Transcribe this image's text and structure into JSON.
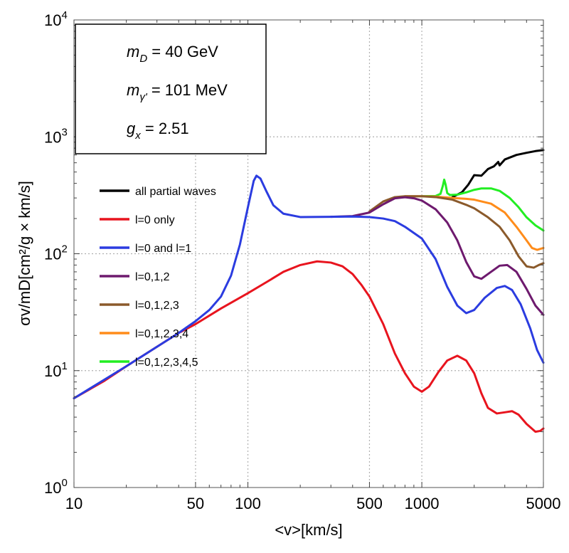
{
  "chart_data": {
    "type": "line",
    "title": "",
    "xlabel": "<v>[km/s]",
    "ylabel": "σv/mD[cm²/g × km/s]",
    "xscale": "log",
    "yscale": "log",
    "xlim": [
      10,
      5000
    ],
    "ylim": [
      1,
      10000
    ],
    "grid": "dotted gray at 50, 100, 500, 1000 and 1000, 100, 10",
    "x_ticks": [
      {
        "value": 10,
        "label": "10"
      },
      {
        "value": 50,
        "label": "50"
      },
      {
        "value": 100,
        "label": "100"
      },
      {
        "value": 500,
        "label": "500"
      },
      {
        "value": 1000,
        "label": "1000"
      },
      {
        "value": 5000,
        "label": "5000"
      }
    ],
    "y_ticks": [
      {
        "value": 1,
        "base": "10",
        "exp": "0"
      },
      {
        "value": 10,
        "base": "10",
        "exp": "1"
      },
      {
        "value": 100,
        "base": "10",
        "exp": "2"
      },
      {
        "value": 1000,
        "base": "10",
        "exp": "3"
      },
      {
        "value": 10000,
        "base": "10",
        "exp": "4"
      }
    ],
    "legend_position": "upper-left, inside plot",
    "info_box": {
      "position": "top-left",
      "lines": [
        {
          "symbol": "m",
          "sub": "D",
          "rest": " = 40 GeV"
        },
        {
          "symbol": "m",
          "sub": "γ'",
          "rest": " = 101 MeV"
        },
        {
          "symbol": "g",
          "sub": "x",
          "rest": " = 2.51"
        }
      ]
    },
    "series": [
      {
        "name": "all partial waves",
        "color": "#000000",
        "points": [
          [
            1500,
            305
          ],
          [
            1700,
            335
          ],
          [
            1850,
            390
          ],
          [
            2000,
            470
          ],
          [
            2200,
            465
          ],
          [
            2400,
            530
          ],
          [
            2600,
            560
          ],
          [
            2750,
            610
          ],
          [
            2800,
            570
          ],
          [
            3000,
            640
          ],
          [
            3500,
            700
          ],
          [
            4000,
            730
          ],
          [
            4500,
            755
          ],
          [
            5000,
            770
          ]
        ]
      },
      {
        "name": "l=0 only",
        "color": "#e8141e",
        "points": [
          [
            10,
            5.8
          ],
          [
            15,
            8.2
          ],
          [
            20,
            10.9
          ],
          [
            30,
            16
          ],
          [
            40,
            21
          ],
          [
            50,
            25
          ],
          [
            70,
            34
          ],
          [
            100,
            46
          ],
          [
            130,
            58
          ],
          [
            160,
            70
          ],
          [
            200,
            80
          ],
          [
            250,
            86
          ],
          [
            300,
            84
          ],
          [
            350,
            78
          ],
          [
            400,
            67
          ],
          [
            450,
            54
          ],
          [
            500,
            43
          ],
          [
            600,
            25
          ],
          [
            700,
            14
          ],
          [
            800,
            9.5
          ],
          [
            900,
            7.3
          ],
          [
            1000,
            6.6
          ],
          [
            1100,
            7.3
          ],
          [
            1250,
            9.8
          ],
          [
            1400,
            12.2
          ],
          [
            1600,
            13.4
          ],
          [
            1800,
            12.2
          ],
          [
            2000,
            9.5
          ],
          [
            2200,
            6.4
          ],
          [
            2400,
            4.8
          ],
          [
            2700,
            4.3
          ],
          [
            3000,
            4.4
          ],
          [
            3300,
            4.5
          ],
          [
            3600,
            4.2
          ],
          [
            4000,
            3.5
          ],
          [
            4500,
            3.0
          ],
          [
            4800,
            3.05
          ],
          [
            5000,
            3.2
          ]
        ]
      },
      {
        "name": "l=0 and l=1",
        "color": "#2b3ce0",
        "points": [
          [
            10,
            5.8
          ],
          [
            20,
            10.9
          ],
          [
            30,
            16
          ],
          [
            40,
            21
          ],
          [
            50,
            26.5
          ],
          [
            60,
            33
          ],
          [
            70,
            43
          ],
          [
            80,
            65
          ],
          [
            90,
            120
          ],
          [
            100,
            250
          ],
          [
            108,
            420
          ],
          [
            112,
            465
          ],
          [
            118,
            440
          ],
          [
            128,
            340
          ],
          [
            140,
            260
          ],
          [
            160,
            220
          ],
          [
            200,
            206
          ],
          [
            300,
            207
          ],
          [
            400,
            208
          ],
          [
            500,
            206
          ],
          [
            600,
            200
          ],
          [
            700,
            190
          ],
          [
            800,
            170
          ],
          [
            1000,
            135
          ],
          [
            1200,
            90
          ],
          [
            1400,
            52
          ],
          [
            1600,
            36
          ],
          [
            1800,
            31
          ],
          [
            2000,
            33
          ],
          [
            2300,
            42
          ],
          [
            2700,
            51
          ],
          [
            3000,
            53
          ],
          [
            3300,
            49
          ],
          [
            3700,
            37
          ],
          [
            4200,
            23
          ],
          [
            4600,
            15
          ],
          [
            5000,
            11.7
          ]
        ]
      },
      {
        "name": "l=0,1,2",
        "color": "#6e1a6e",
        "points": [
          [
            300,
            207
          ],
          [
            400,
            210
          ],
          [
            500,
            225
          ],
          [
            600,
            265
          ],
          [
            700,
            298
          ],
          [
            800,
            304
          ],
          [
            900,
            298
          ],
          [
            1000,
            285
          ],
          [
            1200,
            240
          ],
          [
            1400,
            185
          ],
          [
            1600,
            130
          ],
          [
            1800,
            85
          ],
          [
            2000,
            64
          ],
          [
            2200,
            61
          ],
          [
            2500,
            70
          ],
          [
            2800,
            79
          ],
          [
            3100,
            80
          ],
          [
            3500,
            70
          ],
          [
            4000,
            50
          ],
          [
            4500,
            36
          ],
          [
            5000,
            30
          ]
        ]
      },
      {
        "name": "l=0,1,2,3",
        "color": "#8b5a2b",
        "points": [
          [
            500,
            230
          ],
          [
            600,
            280
          ],
          [
            700,
            305
          ],
          [
            800,
            310
          ],
          [
            1000,
            310
          ],
          [
            1200,
            305
          ],
          [
            1500,
            290
          ],
          [
            1800,
            262
          ],
          [
            2000,
            245
          ],
          [
            2400,
            205
          ],
          [
            2800,
            170
          ],
          [
            3200,
            130
          ],
          [
            3600,
            95
          ],
          [
            4000,
            78
          ],
          [
            4400,
            76
          ],
          [
            4700,
            80
          ],
          [
            5000,
            83
          ]
        ]
      },
      {
        "name": "l=0,1,2,3,4",
        "color": "#ff8c1a",
        "points": [
          [
            800,
            310
          ],
          [
            1000,
            310
          ],
          [
            1200,
            308
          ],
          [
            1500,
            300
          ],
          [
            1800,
            295
          ],
          [
            2000,
            290
          ],
          [
            2500,
            268
          ],
          [
            3000,
            225
          ],
          [
            3500,
            170
          ],
          [
            4000,
            130
          ],
          [
            4300,
            112
          ],
          [
            4600,
            108
          ],
          [
            5000,
            112
          ]
        ]
      },
      {
        "name": "l=0,1,2,3,4,5",
        "color": "#22ee22",
        "points": [
          [
            1000,
            310
          ],
          [
            1200,
            312
          ],
          [
            1280,
            325
          ],
          [
            1320,
            380
          ],
          [
            1345,
            430
          ],
          [
            1370,
            390
          ],
          [
            1400,
            330
          ],
          [
            1450,
            318
          ],
          [
            1600,
            320
          ],
          [
            1800,
            335
          ],
          [
            2000,
            352
          ],
          [
            2200,
            362
          ],
          [
            2500,
            362
          ],
          [
            2800,
            345
          ],
          [
            3200,
            300
          ],
          [
            3600,
            250
          ],
          [
            4000,
            205
          ],
          [
            4500,
            175
          ],
          [
            5000,
            158
          ]
        ]
      }
    ]
  }
}
